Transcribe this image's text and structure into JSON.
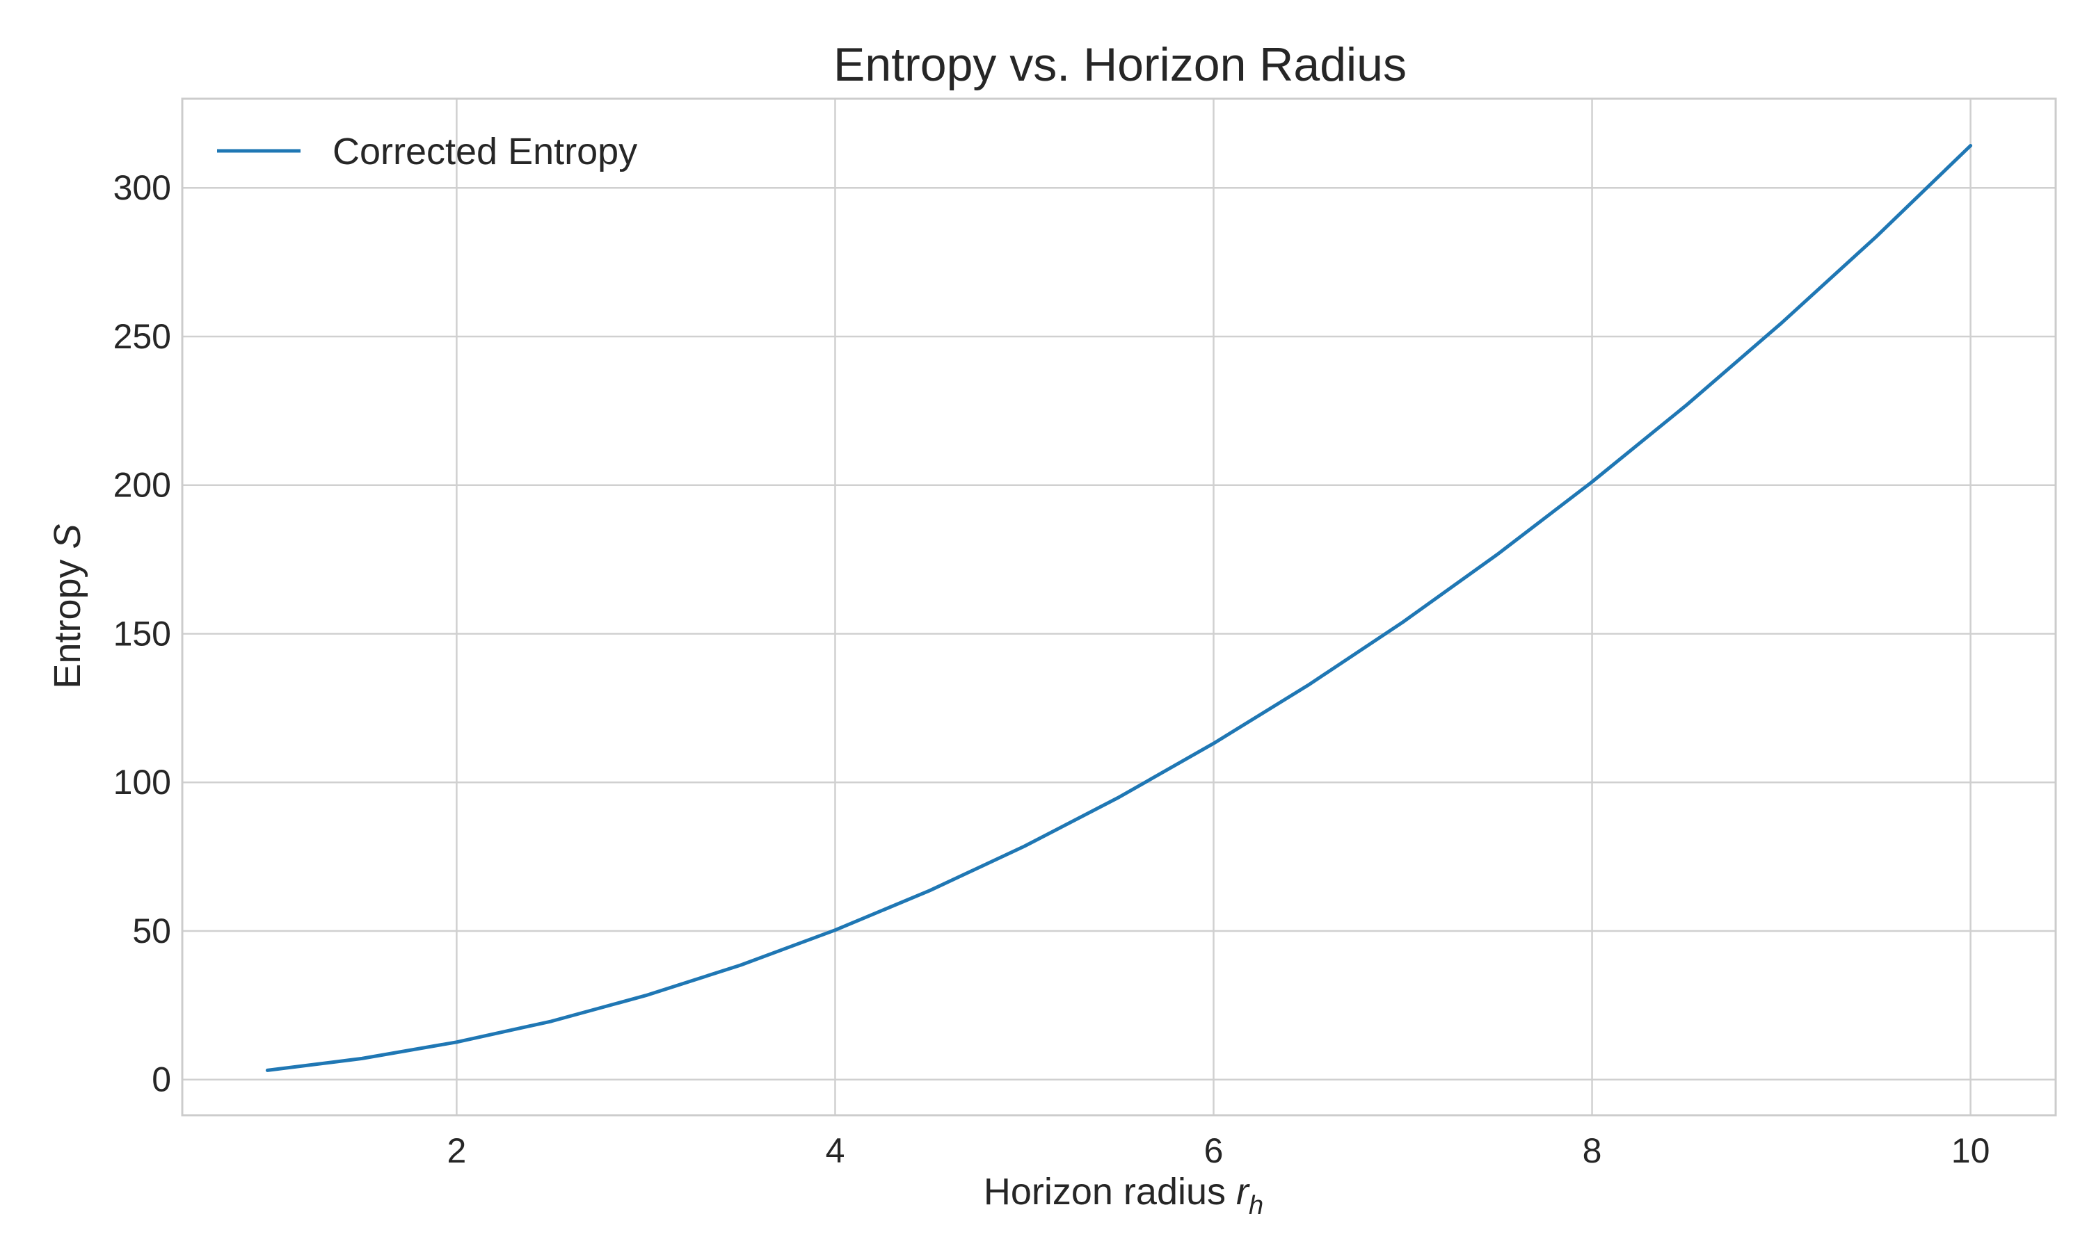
{
  "chart_data": {
    "type": "line",
    "title": "Entropy vs. Horizon Radius",
    "xlabel_text": "Horizon radius ",
    "xlabel_math": "r",
    "xlabel_sub": "h",
    "ylabel_text": "Entropy ",
    "ylabel_math": "S",
    "xlim": [
      0.55,
      10.45
    ],
    "ylim": [
      -12,
      330
    ],
    "xticks": [
      2,
      4,
      6,
      8,
      10
    ],
    "yticks": [
      0,
      50,
      100,
      150,
      200,
      250,
      300
    ],
    "grid": true,
    "legend_position": "top-left",
    "series": [
      {
        "name": "Corrected Entropy",
        "color": "#1f77b4",
        "x": [
          1.0,
          1.5,
          2.0,
          2.5,
          3.0,
          3.5,
          4.0,
          4.5,
          5.0,
          5.5,
          6.0,
          6.5,
          7.0,
          7.5,
          8.0,
          8.5,
          9.0,
          9.5,
          10.0
        ],
        "y": [
          3.1,
          7.1,
          12.6,
          19.6,
          28.3,
          38.5,
          50.3,
          63.6,
          78.5,
          95.0,
          113.1,
          132.7,
          153.9,
          176.7,
          201.1,
          227.0,
          254.5,
          283.5,
          314.2
        ]
      }
    ]
  }
}
